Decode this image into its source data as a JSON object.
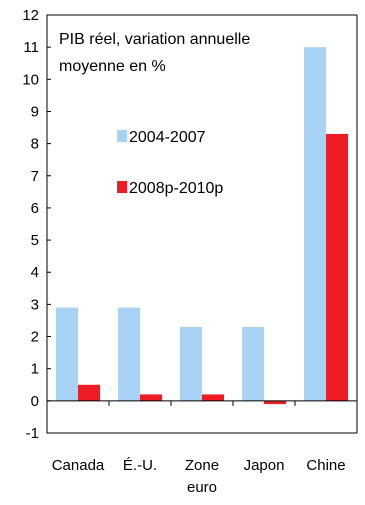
{
  "chart_data": {
    "type": "bar",
    "annotation_lines": [
      "PIB réel, variation annuelle",
      "moyenne en %"
    ],
    "categories": [
      [
        "Canada"
      ],
      [
        "É.-U."
      ],
      [
        "Zone",
        "euro"
      ],
      [
        "Japon"
      ],
      [
        "Chine"
      ]
    ],
    "series": [
      {
        "name": "2004-2007",
        "color": "#a9d3f5",
        "values": [
          2.9,
          2.9,
          2.3,
          2.3,
          11.0
        ]
      },
      {
        "name": "2008p-2010p",
        "color": "#ee1c25",
        "values": [
          0.5,
          0.2,
          0.2,
          -0.1,
          8.3
        ]
      }
    ],
    "ylim": [
      -1,
      12
    ],
    "yticks": [
      -1,
      0,
      1,
      2,
      3,
      4,
      5,
      6,
      7,
      8,
      9,
      10,
      11,
      12
    ],
    "grid": false,
    "legend_placement": "center-left"
  }
}
